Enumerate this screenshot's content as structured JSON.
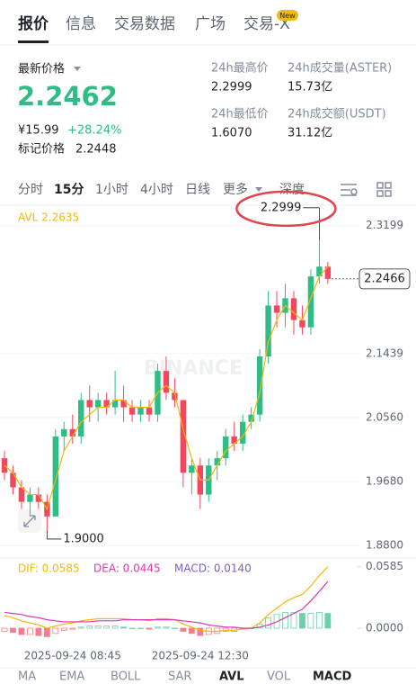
{
  "tabs": [
    "报价",
    "信息",
    "交易数据",
    "广场",
    "交易-X"
  ],
  "tab_badge": "New",
  "price": {
    "label": "最新价格",
    "last": "2.2462",
    "cny": "¥15.99",
    "change": "+28.24%",
    "mark_label": "标记价格",
    "mark": "2.2448"
  },
  "stats": [
    {
      "label": "24h最高价",
      "value": "2.2999"
    },
    {
      "label": "24h成交量(ASTER)",
      "value": "15.73亿"
    },
    {
      "label": "24h最低价",
      "value": "1.6070"
    },
    {
      "label": "24h成交额(USDT)",
      "value": "31.12亿"
    }
  ],
  "intervals": [
    "分时",
    "15分",
    "1小时",
    "4小时",
    "日线",
    "更多",
    "深度"
  ],
  "watermark": "BINANCE",
  "chart_data": [
    {
      "type": "candlestick",
      "legend": "AVL 2.2635",
      "avl_color": "#f0b90b",
      "up_color": "#2ebd85",
      "down_color": "#f6465d",
      "categories": [
        null,
        null,
        null,
        null,
        null,
        null,
        null,
        null,
        "2025-09-24 08:45",
        null,
        null,
        null,
        null,
        null,
        null,
        null,
        null,
        null,
        null,
        null,
        null,
        null,
        null,
        "2025-09-24 12:30",
        null,
        null,
        null,
        null,
        null,
        null,
        null,
        null,
        null,
        null,
        null,
        null,
        null,
        null,
        null
      ],
      "open": [
        2.0,
        1.98,
        1.96,
        1.94,
        1.95,
        1.94,
        1.92,
        2.03,
        2.04,
        2.03,
        2.08,
        2.07,
        2.08,
        2.07,
        2.08,
        2.07,
        2.06,
        2.07,
        2.06,
        2.12,
        2.09,
        2.08,
        1.98,
        1.99,
        1.95,
        1.99,
        2.0,
        2.03,
        2.02,
        2.05,
        2.06,
        2.14,
        2.21,
        2.2,
        2.22,
        2.19,
        2.18,
        2.25,
        2.2635
      ],
      "high": [
        2.01,
        1.99,
        1.97,
        1.96,
        1.96,
        1.95,
        2.04,
        2.05,
        2.06,
        2.09,
        2.1,
        2.09,
        2.09,
        2.12,
        2.1,
        2.08,
        2.08,
        2.08,
        2.13,
        2.14,
        2.11,
        2.08,
        2.0,
        2.0,
        2.0,
        2.01,
        2.04,
        2.05,
        2.06,
        2.07,
        2.15,
        2.23,
        2.23,
        2.24,
        2.23,
        2.21,
        2.26,
        2.2999,
        2.27
      ],
      "low": [
        1.97,
        1.95,
        1.93,
        1.92,
        1.93,
        1.9,
        1.92,
        2.01,
        2.02,
        2.02,
        2.05,
        2.05,
        2.06,
        2.06,
        2.05,
        2.05,
        2.05,
        2.05,
        2.05,
        2.08,
        2.07,
        1.96,
        1.95,
        1.93,
        1.94,
        1.97,
        1.99,
        2.01,
        2.01,
        2.04,
        2.05,
        2.13,
        2.18,
        2.18,
        2.17,
        2.17,
        2.17,
        2.24,
        2.24
      ],
      "close": [
        1.98,
        1.96,
        1.94,
        1.95,
        1.94,
        1.92,
        2.03,
        2.04,
        2.03,
        2.08,
        2.07,
        2.08,
        2.07,
        2.08,
        2.07,
        2.06,
        2.07,
        2.06,
        2.12,
        2.09,
        2.08,
        1.98,
        1.99,
        1.95,
        1.99,
        2.0,
        2.03,
        2.02,
        2.05,
        2.06,
        2.14,
        2.21,
        2.2,
        2.22,
        2.19,
        2.18,
        2.25,
        2.2635,
        2.2466
      ],
      "avl": [
        1.99,
        1.98,
        1.96,
        1.95,
        1.95,
        1.93,
        1.97,
        2.01,
        2.03,
        2.05,
        2.06,
        2.07,
        2.07,
        2.08,
        2.08,
        2.07,
        2.07,
        2.07,
        2.09,
        2.1,
        2.09,
        2.04,
        2.0,
        1.97,
        1.97,
        1.99,
        2.01,
        2.02,
        2.03,
        2.05,
        2.09,
        2.16,
        2.19,
        2.21,
        2.2,
        2.19,
        2.22,
        2.25,
        2.2635
      ],
      "annotations": [
        {
          "text": "2.2999"
        },
        {
          "text": "1.9000"
        }
      ],
      "last_price_label": "2.2466",
      "ylim": [
        1.869,
        2.343
      ],
      "yticks": [
        2.3199,
        {
          "value": 2.1439,
          "label": "2.1439"
        },
        {
          "value": 2.056,
          "label": "2.0560"
        },
        {
          "value": 1.968,
          "label": "1.9680"
        },
        {
          "value": 1.88,
          "label": "1.8800"
        }
      ],
      "grid": true
    },
    {
      "type": "macd",
      "series": [
        {
          "legend": "DIF: 0.0585",
          "color": "#f0b90b",
          "values": [
            0.012,
            0.01,
            0.007,
            0.005,
            0.003,
            0.0,
            0.002,
            0.004,
            0.005,
            0.007,
            0.008,
            0.009,
            0.009,
            0.009,
            0.009,
            0.008,
            0.008,
            0.007,
            0.009,
            0.009,
            0.008,
            0.004,
            0.001,
            -0.002,
            -0.003,
            -0.003,
            -0.002,
            -0.002,
            -0.001,
            0.0,
            0.005,
            0.013,
            0.019,
            0.025,
            0.029,
            0.032,
            0.04,
            0.05,
            0.0585
          ]
        },
        {
          "legend": "DEA: 0.0445",
          "color": "#d63ab1",
          "values": [
            0.015,
            0.014,
            0.013,
            0.011,
            0.01,
            0.008,
            0.007,
            0.006,
            0.006,
            0.006,
            0.006,
            0.007,
            0.007,
            0.007,
            0.008,
            0.008,
            0.008,
            0.008,
            0.008,
            0.008,
            0.008,
            0.007,
            0.006,
            0.005,
            0.003,
            0.002,
            0.001,
            0.001,
            0.0,
            0.0,
            0.001,
            0.003,
            0.006,
            0.01,
            0.014,
            0.018,
            0.026,
            0.035,
            0.0445
          ]
        }
      ],
      "histogram": {
        "legend": "MACD: 0.0140",
        "color": "#7b5fc2",
        "values": [
          -0.003,
          -0.004,
          -0.006,
          -0.006,
          -0.007,
          -0.008,
          -0.005,
          -0.002,
          -0.001,
          0.001,
          0.002,
          0.002,
          0.002,
          0.002,
          0.001,
          0.0,
          0.0,
          -0.001,
          0.001,
          0.001,
          0.0,
          -0.003,
          -0.005,
          -0.007,
          -0.006,
          -0.005,
          -0.003,
          -0.003,
          -0.001,
          0.0,
          0.004,
          0.01,
          0.013,
          0.015,
          0.015,
          0.014,
          0.014,
          0.015,
          0.014
        ]
      },
      "ylim": [
        -0.012,
        0.065
      ],
      "yticks": [
        0.0585,
        {
          "value": 0,
          "label": "0.0000"
        }
      ]
    }
  ],
  "indicator_tabs": [
    "MA",
    "EMA",
    "BOLL",
    "SAR",
    "AVL",
    "VOL",
    "MACD"
  ]
}
